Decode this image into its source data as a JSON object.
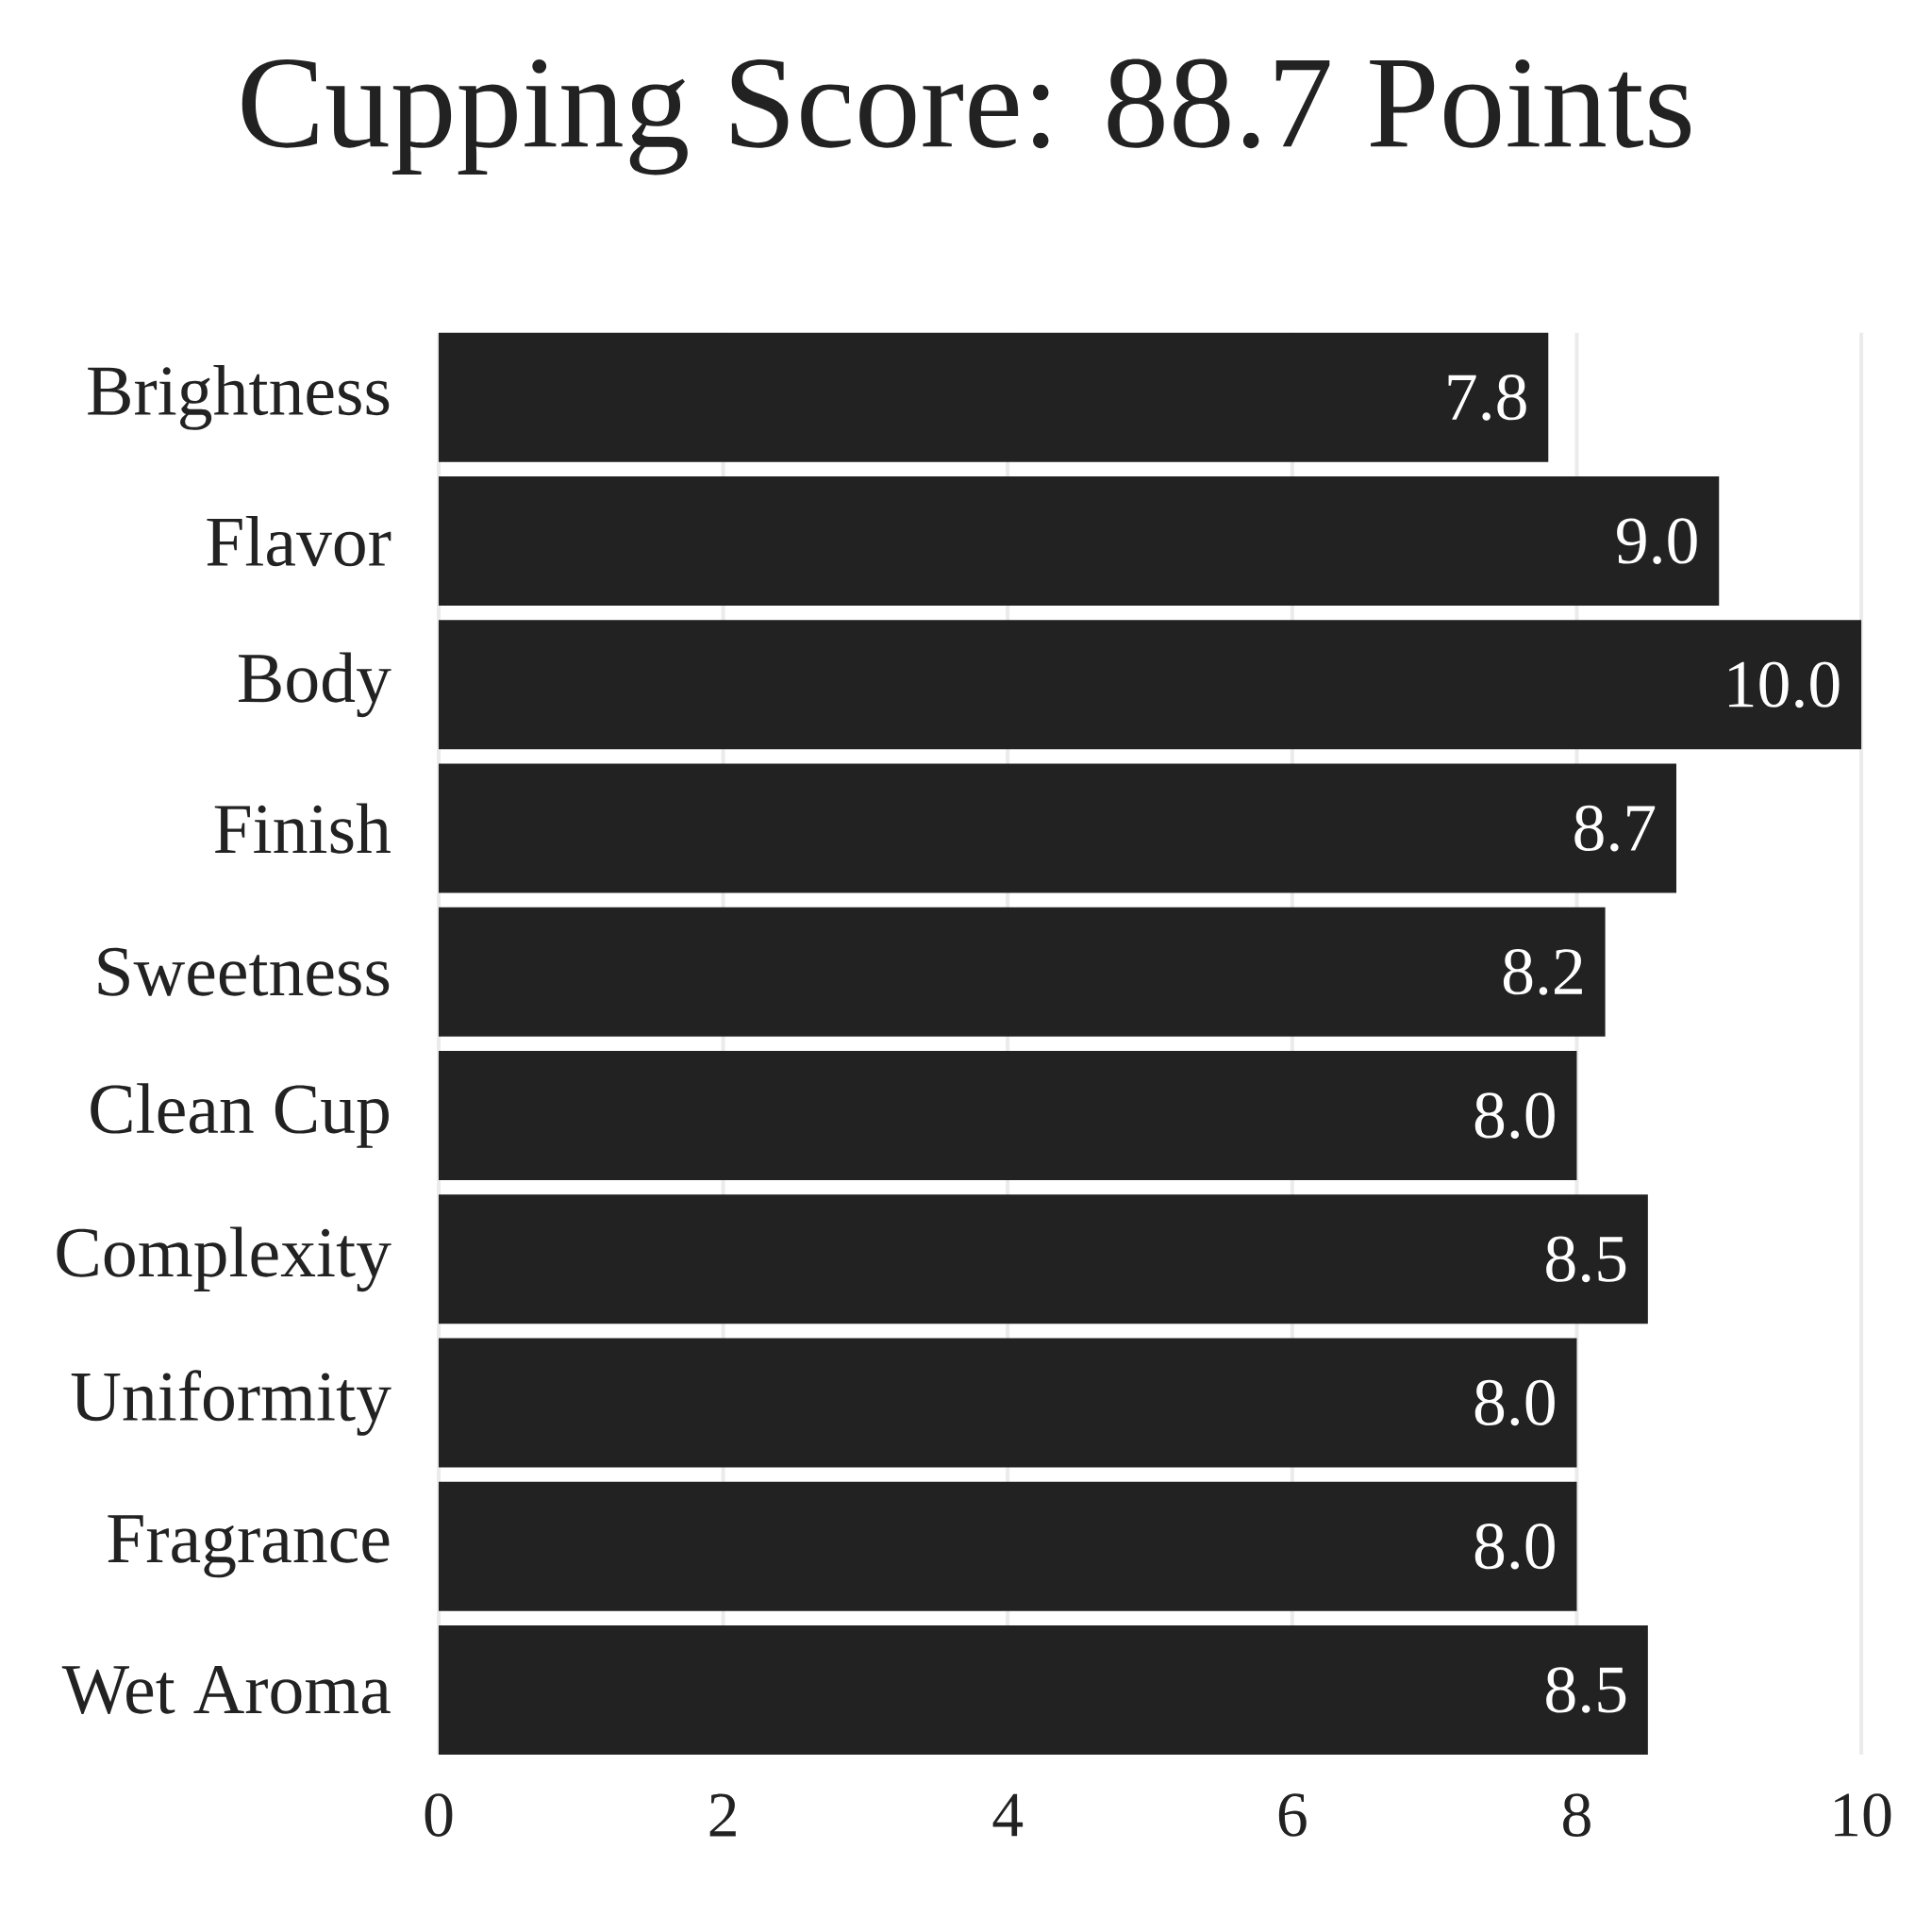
{
  "chart_data": {
    "type": "bar",
    "orientation": "horizontal",
    "title": "Cupping Score: 88.7 Points",
    "categories": [
      "Brightness",
      "Flavor",
      "Body",
      "Finish",
      "Sweetness",
      "Clean Cup",
      "Complexity",
      "Uniformity",
      "Fragrance",
      "Wet Aroma"
    ],
    "values": [
      7.8,
      9.0,
      10.0,
      8.7,
      8.2,
      8.0,
      8.5,
      8.0,
      8.0,
      8.5
    ],
    "value_labels": [
      "7.8",
      "9.0",
      "10.0",
      "8.7",
      "8.2",
      "8.0",
      "8.5",
      "8.0",
      "8.0",
      "8.5"
    ],
    "color": "#222222",
    "xlim": [
      0,
      10
    ],
    "xticks": [
      0,
      2,
      4,
      6,
      8,
      10
    ],
    "grid": "x"
  }
}
